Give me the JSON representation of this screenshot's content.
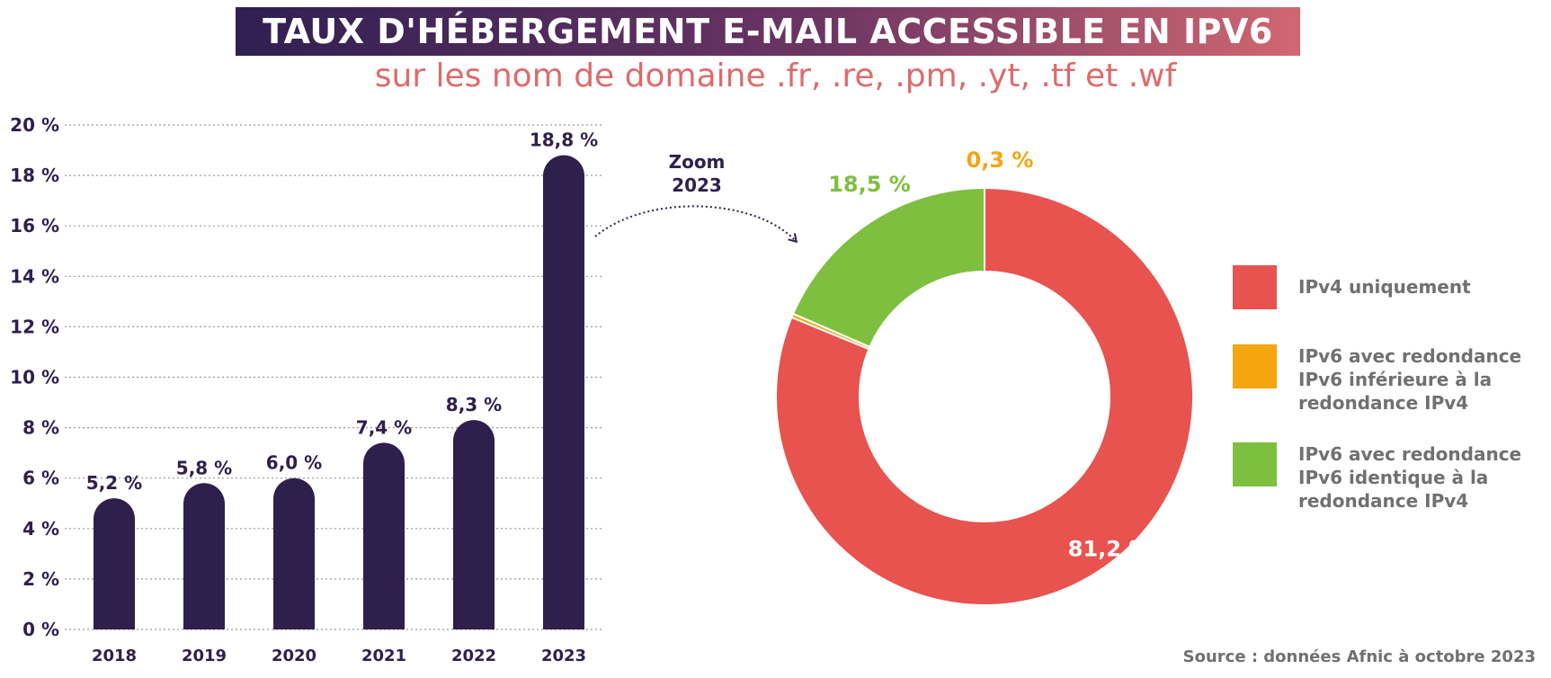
{
  "title": "TAUX D'HÉBERGEMENT E-MAIL ACCESSIBLE EN IPV6",
  "subtitle": "sur les nom de domaine .fr, .re, .pm, .yt, .tf et .wf",
  "zoom_label": [
    "Zoom",
    "2023"
  ],
  "source": "Source : données Afnic à octobre 2023",
  "colors": {
    "bar": "#2f1f4d",
    "title_gradient": [
      "#2f1f52",
      "#d16771"
    ],
    "subtitle": "#dd6b6b",
    "ipv4_only": "#e8534f",
    "ipv6_lower": "#f5a50e",
    "ipv6_identical": "#7fbf3f"
  },
  "chart_data": [
    {
      "type": "bar",
      "categories": [
        "2018",
        "2019",
        "2020",
        "2021",
        "2022",
        "2023"
      ],
      "values": [
        5.2,
        5.8,
        6.0,
        7.4,
        8.3,
        18.8
      ],
      "value_labels": [
        "5,2 %",
        "5,8 %",
        "6,0 %",
        "7,4 %",
        "8,3 %",
        "18,8 %"
      ],
      "ylim": [
        0,
        20
      ],
      "yticks": [
        0,
        2,
        4,
        6,
        8,
        10,
        12,
        14,
        16,
        18,
        20
      ],
      "ytick_labels": [
        "0 %",
        "2 %",
        "4 %",
        "6 %",
        "8 %",
        "10 %",
        "12 %",
        "14 %",
        "16 %",
        "18 %",
        "20 %"
      ],
      "grid": true
    },
    {
      "type": "pie",
      "donut": true,
      "slices": [
        {
          "label": "IPv4 uniquement",
          "value": 81.2,
          "value_label": "81,2 %",
          "color": "#e8534f"
        },
        {
          "label": "IPv6 avec redondance IPv6 inférieure à la redondance IPv4",
          "legend_lines": [
            "IPv6 avec redondance",
            "IPv6 inférieure à la",
            "redondance IPv4"
          ],
          "value": 0.3,
          "value_label": "0,3 %",
          "color": "#f5a50e"
        },
        {
          "label": "IPv6 avec redondance IPv6 identique à la redondance IPv4",
          "legend_lines": [
            "IPv6 avec redondance",
            "IPv6 identique à la",
            "redondance IPv4"
          ],
          "value": 18.5,
          "value_label": "18,5 %",
          "color": "#7fbf3f"
        }
      ],
      "legend_position": "right"
    }
  ]
}
